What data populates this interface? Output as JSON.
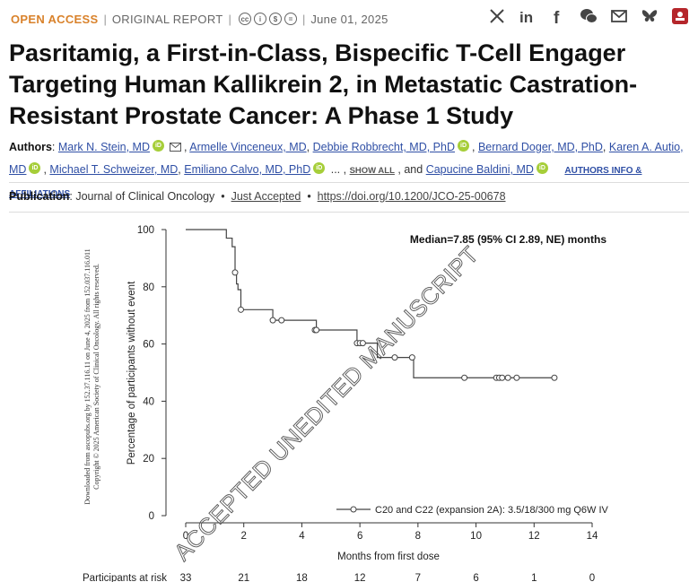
{
  "topbar": {
    "open_access": "OPEN ACCESS",
    "report_type": "ORIGINAL REPORT",
    "date": "June 01, 2025"
  },
  "share_icons": [
    "x-icon",
    "linkedin-icon",
    "facebook-icon",
    "wechat-icon",
    "email-icon",
    "bluesky-icon",
    "mendeley-icon"
  ],
  "title": "Pasritamig, a First-in-Class, Bispecific T-Cell Engager Targeting Human Kallikrein 2, in Metastatic Castration-Resistant Prostate Cancer: A Phase 1 Study",
  "authors": {
    "label": "Authors",
    "list": [
      "Mark N. Stein, MD",
      "Armelle Vinceneux, MD",
      "Debbie Robbrecht, MD, PhD",
      "Bernard Doger, MD, PhD",
      "Karen A. Autio, MD",
      "Michael T. Schweizer, MD",
      "Emiliano Calvo, MD, PhD",
      "Capucine Baldini, MD"
    ],
    "show_all": "SHOW ALL",
    "ellipsis": "... ,",
    "and": ", and",
    "info_link": "AUTHORS INFO & AFFILIATIONS"
  },
  "publication": {
    "label": "Publication",
    "journal": "Journal of Clinical Oncology",
    "status": "Just Accepted",
    "doi": "https://doi.org/10.1200/JCO-25-00678"
  },
  "watermark": "ACCEPTED UNEDITED MANUSCRIPT",
  "side_note_1": "Downloaded from ascopubs.org by 152.37.116.11 on June 4, 2025 from 152.037.116.011",
  "side_note_2": "Copyright © 2025 American Society of Clinical Oncology. All rights reserved.",
  "chart_data": {
    "type": "line",
    "step": true,
    "annotation": "Median=7.85 (95% CI 2.89, NE) months",
    "xlabel": "Months from first dose",
    "ylabel": "Percentage of participants without event",
    "xlim": [
      0,
      14
    ],
    "ylim": [
      0,
      100
    ],
    "xticks": [
      "0",
      "2",
      "4",
      "6",
      "8",
      "10",
      "12",
      "14"
    ],
    "yticks": [
      "0",
      "20",
      "40",
      "60",
      "80",
      "100"
    ],
    "grid": false,
    "legend_position": "bottom-right",
    "series": [
      {
        "name": "C20 and C22 (expansion 2A): 3.5/18/300 mg Q6W IV",
        "x": [
          0,
          1.2,
          1.4,
          1.6,
          1.7,
          1.75,
          1.8,
          1.9,
          2.9,
          3.0,
          3.3,
          4.4,
          4.5,
          5.9,
          6.1,
          6.5,
          6.6,
          7.2,
          7.8,
          7.85,
          9.6,
          10.7,
          10.8,
          10.9,
          11.1,
          11.4,
          12.7
        ],
        "y": [
          100,
          100,
          97,
          94,
          85,
          81,
          79,
          72,
          72,
          68.3,
          68.3,
          68.3,
          64.9,
          60.3,
          60.3,
          60.3,
          55.3,
          55.3,
          55.3,
          48.2,
          48.2,
          48.2,
          48.2,
          48.2,
          48.2,
          48.2,
          48.2
        ],
        "censored": [
          [
            1.7,
            85
          ],
          [
            1.9,
            72
          ],
          [
            3.0,
            68.3
          ],
          [
            3.3,
            68.3
          ],
          [
            4.45,
            64.9
          ],
          [
            4.5,
            64.9
          ],
          [
            5.9,
            60.3
          ],
          [
            6.0,
            60.3
          ],
          [
            6.1,
            60.3
          ],
          [
            7.2,
            55.3
          ],
          [
            7.8,
            55.3
          ],
          [
            9.6,
            48.2
          ],
          [
            10.7,
            48.2
          ],
          [
            10.8,
            48.2
          ],
          [
            10.9,
            48.2
          ],
          [
            11.1,
            48.2
          ],
          [
            11.4,
            48.2
          ],
          [
            12.7,
            48.2
          ]
        ]
      }
    ],
    "risk_table": {
      "label": "Participants at risk",
      "x": [
        0,
        2,
        4,
        6,
        8,
        10,
        12,
        14
      ],
      "values": [
        "33",
        "21",
        "18",
        "12",
        "7",
        "6",
        "1",
        "0"
      ]
    }
  }
}
